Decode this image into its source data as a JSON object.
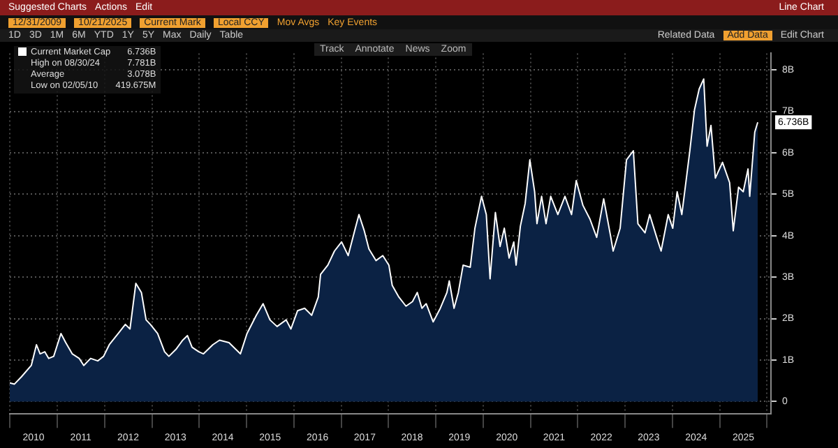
{
  "chart_data": {
    "type": "area",
    "x": [
      "2009-12-31",
      "2010-02-05",
      "2010-04-01",
      "2010-06-15",
      "2010-07-25",
      "2010-08-22",
      "2010-09-27",
      "2010-10-27",
      "2010-12-05",
      "2011-01-30",
      "2011-03-08",
      "2011-04-27",
      "2011-06-20",
      "2011-07-25",
      "2011-09-16",
      "2011-11-10",
      "2011-12-25",
      "2012-02-07",
      "2012-04-16",
      "2012-06-10",
      "2012-07-16",
      "2012-08-30",
      "2012-10-12",
      "2012-11-17",
      "2012-12-20",
      "2013-02-14",
      "2013-04-09",
      "2013-05-12",
      "2013-07-06",
      "2013-08-27",
      "2013-10-02",
      "2013-11-07",
      "2013-12-29",
      "2014-02-03",
      "2014-04-16",
      "2014-06-07",
      "2014-08-19",
      "2014-10-10",
      "2014-11-15",
      "2015-01-05",
      "2015-03-18",
      "2015-05-09",
      "2015-07-01",
      "2015-08-25",
      "2015-11-03",
      "2015-12-10",
      "2016-01-30",
      "2016-03-25",
      "2016-05-18",
      "2016-07-08",
      "2016-07-26",
      "2016-09-20",
      "2016-11-10",
      "2017-01-04",
      "2017-02-24",
      "2017-04-20",
      "2017-05-18",
      "2017-06-28",
      "2017-08-03",
      "2017-09-27",
      "2017-11-18",
      "2018-01-04",
      "2018-01-30",
      "2018-03-22",
      "2018-05-16",
      "2018-07-05",
      "2018-08-11",
      "2018-09-16",
      "2018-10-19",
      "2018-12-12",
      "2019-02-05",
      "2019-03-28",
      "2019-04-15",
      "2019-05-22",
      "2019-06-24",
      "2019-07-31",
      "2019-09-24",
      "2019-10-30",
      "2019-12-20",
      "2020-01-26",
      "2020-02-24",
      "2020-04-05",
      "2020-05-11",
      "2020-06-13",
      "2020-07-20",
      "2020-08-25",
      "2020-09-12",
      "2020-10-15",
      "2020-11-21",
      "2020-12-27",
      "2021-02-02",
      "2021-02-20",
      "2021-03-28",
      "2021-05-01",
      "2021-06-06",
      "2021-07-31",
      "2021-09-24",
      "2021-11-14",
      "2021-12-20",
      "2022-02-10",
      "2022-04-05",
      "2022-05-27",
      "2022-07-20",
      "2022-09-13",
      "2022-10-01",
      "2022-11-24",
      "2023-01-12",
      "2023-03-06",
      "2023-04-10",
      "2023-06-04",
      "2023-07-10",
      "2023-09-02",
      "2023-10-06",
      "2023-11-30",
      "2024-01-04",
      "2024-02-07",
      "2024-03-14",
      "2024-05-15",
      "2024-06-20",
      "2024-07-26",
      "2024-08-30",
      "2024-09-25",
      "2024-10-25",
      "2024-11-28",
      "2025-01-22",
      "2025-03-18",
      "2025-04-15",
      "2025-05-26",
      "2025-07-01",
      "2025-08-07",
      "2025-08-20",
      "2025-09-28",
      "2025-10-21"
    ],
    "series": [
      {
        "name": "Current Market Cap",
        "color": "#ffffff",
        "values": [
          0.45,
          0.42,
          0.6,
          0.87,
          1.37,
          1.15,
          1.2,
          1.04,
          1.09,
          1.64,
          1.42,
          1.15,
          1.04,
          0.87,
          1.04,
          0.98,
          1.09,
          1.37,
          1.64,
          1.86,
          1.75,
          2.85,
          2.63,
          1.97,
          1.86,
          1.64,
          1.2,
          1.09,
          1.26,
          1.48,
          1.59,
          1.31,
          1.2,
          1.15,
          1.37,
          1.48,
          1.42,
          1.26,
          1.15,
          1.64,
          2.08,
          2.36,
          1.97,
          1.81,
          1.97,
          1.75,
          2.19,
          2.25,
          2.08,
          2.52,
          3.07,
          3.29,
          3.63,
          3.85,
          3.52,
          4.18,
          4.51,
          4.12,
          3.68,
          3.4,
          3.52,
          3.29,
          2.8,
          2.52,
          2.3,
          2.41,
          2.63,
          2.25,
          2.36,
          1.92,
          2.25,
          2.63,
          2.91,
          2.25,
          2.63,
          3.29,
          3.24,
          4.18,
          4.95,
          4.51,
          2.96,
          4.56,
          3.74,
          4.18,
          3.46,
          3.85,
          3.29,
          4.23,
          4.78,
          5.83,
          5.06,
          4.29,
          4.95,
          4.29,
          4.95,
          4.51,
          4.95,
          4.51,
          5.33,
          4.73,
          4.4,
          3.96,
          4.89,
          3.96,
          3.63,
          4.18,
          5.83,
          6.05,
          4.29,
          4.07,
          4.51,
          3.96,
          3.63,
          4.51,
          4.18,
          5.06,
          4.51,
          6.05,
          7.04,
          7.54,
          7.781,
          6.16,
          6.66,
          5.39,
          5.77,
          5.28,
          4.12,
          5.17,
          5.06,
          5.61,
          4.95,
          6.5,
          6.736
        ]
      }
    ],
    "xlim": [
      "2009-12-31",
      "2026-01-31"
    ],
    "xticks": [
      {
        "value": "2010-01-01",
        "label": null
      },
      {
        "value": "2010-07-02",
        "label": "2010"
      },
      {
        "value": "2011-01-01",
        "label": null
      },
      {
        "value": "2011-07-02",
        "label": "2011"
      },
      {
        "value": "2012-01-01",
        "label": null
      },
      {
        "value": "2012-07-02",
        "label": "2012"
      },
      {
        "value": "2013-01-01",
        "label": null
      },
      {
        "value": "2013-07-02",
        "label": "2013"
      },
      {
        "value": "2014-01-01",
        "label": null
      },
      {
        "value": "2014-07-02",
        "label": "2014"
      },
      {
        "value": "2015-01-01",
        "label": null
      },
      {
        "value": "2015-07-02",
        "label": "2015"
      },
      {
        "value": "2016-01-01",
        "label": null
      },
      {
        "value": "2016-07-02",
        "label": "2016"
      },
      {
        "value": "2017-01-01",
        "label": null
      },
      {
        "value": "2017-07-02",
        "label": "2017"
      },
      {
        "value": "2018-01-01",
        "label": null
      },
      {
        "value": "2018-07-02",
        "label": "2018"
      },
      {
        "value": "2019-01-01",
        "label": null
      },
      {
        "value": "2019-07-02",
        "label": "2019"
      },
      {
        "value": "2020-01-01",
        "label": null
      },
      {
        "value": "2020-07-02",
        "label": "2020"
      },
      {
        "value": "2021-01-01",
        "label": null
      },
      {
        "value": "2021-07-02",
        "label": "2021"
      },
      {
        "value": "2022-01-01",
        "label": null
      },
      {
        "value": "2022-07-02",
        "label": "2022"
      },
      {
        "value": "2023-01-01",
        "label": null
      },
      {
        "value": "2023-07-02",
        "label": "2023"
      },
      {
        "value": "2024-01-01",
        "label": null
      },
      {
        "value": "2024-07-02",
        "label": "2024"
      },
      {
        "value": "2025-01-01",
        "label": null
      },
      {
        "value": "2025-07-02",
        "label": "2025"
      },
      {
        "value": "2026-01-01",
        "label": null
      }
    ],
    "ylim": [
      -0.3,
      8.4
    ],
    "yticks": [
      0,
      {
        "value": 1,
        "label": "1B"
      },
      {
        "value": 2,
        "label": "2B"
      },
      {
        "value": 3,
        "label": "3B"
      },
      {
        "value": 4,
        "label": "4B"
      },
      {
        "value": 5,
        "label": "5B"
      },
      {
        "value": 6,
        "label": "6B"
      },
      {
        "value": 7,
        "label": "7B"
      },
      {
        "value": 8,
        "label": "8B"
      }
    ],
    "grid": true,
    "legend": "top left",
    "marker": "none",
    "annotations": [
      "Suggested Charts",
      "Actions",
      "Edit",
      "Line Chart",
      "12/31/2009",
      "10/21/2025",
      "Current Mark",
      "Local CCY",
      "Mov Avgs",
      "Key Events",
      "1D",
      "3D",
      "1M",
      "6M",
      "YTD",
      "1Y",
      "5Y",
      "Max",
      "Daily",
      "Table",
      "Related Data",
      "Add Data",
      "Edit Chart",
      "Track",
      "Annotate",
      "News",
      "Zoom",
      "6.736B",
      "High on 08/30/24",
      "7.781B",
      "Average",
      "3.078B",
      "Low on 02/05/10",
      "419.675M",
      {
        "text": "6.736B",
        "x": "2025-10-21",
        "y": 6.736
      }
    ]
  }
}
